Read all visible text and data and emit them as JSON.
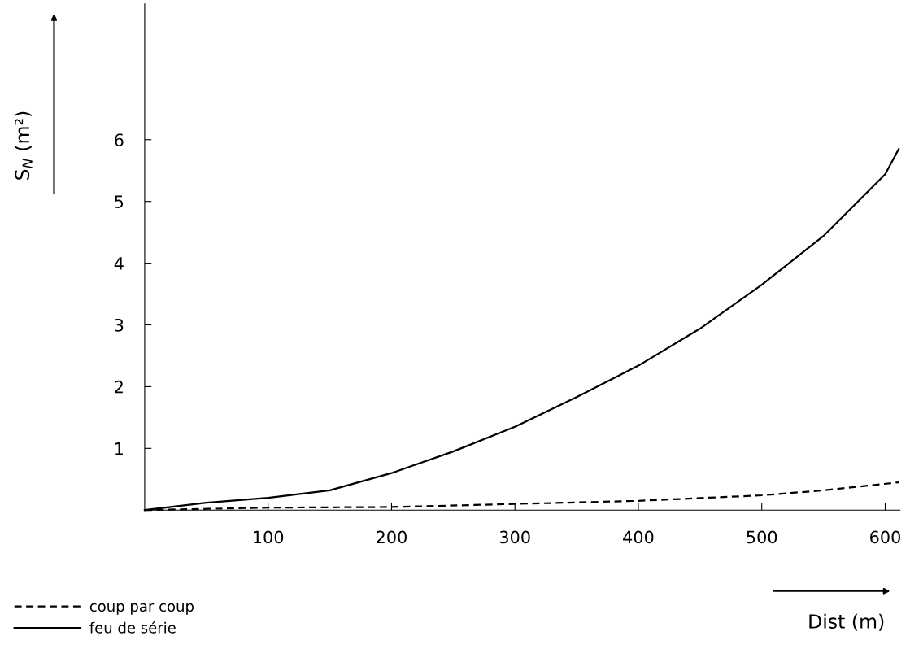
{
  "chart_data": {
    "type": "line",
    "xlabel": "Dist (m)",
    "ylabel": "S$_{N}$ (m²)",
    "xlim": [
      0,
      612
    ],
    "xticks": [
      100,
      200,
      300,
      400,
      500,
      600
    ],
    "ylim": [
      0,
      8.2
    ],
    "yticks": [
      1,
      2,
      3,
      4,
      5,
      6
    ],
    "grid": false,
    "legend": "bottom left",
    "marker": "none",
    "series": [
      {
        "name": "coup par coup",
        "color": "#000000",
        "line_style": "dashed",
        "x": [
          0,
          100,
          200,
          300,
          400,
          500,
          550,
          611
        ],
        "values": [
          0,
          0.04,
          0.05,
          0.1,
          0.15,
          0.24,
          0.32,
          0.45
        ]
      },
      {
        "name": "feu de série",
        "color": "#000000",
        "line_style": "solid",
        "x": [
          0,
          50,
          100,
          150,
          200,
          250,
          300,
          350,
          400,
          450,
          500,
          550,
          600,
          611
        ],
        "values": [
          0,
          0.12,
          0.2,
          0.32,
          0.6,
          0.95,
          1.35,
          1.83,
          2.34,
          2.94,
          3.65,
          4.44,
          5.44,
          5.85
        ]
      }
    ]
  }
}
